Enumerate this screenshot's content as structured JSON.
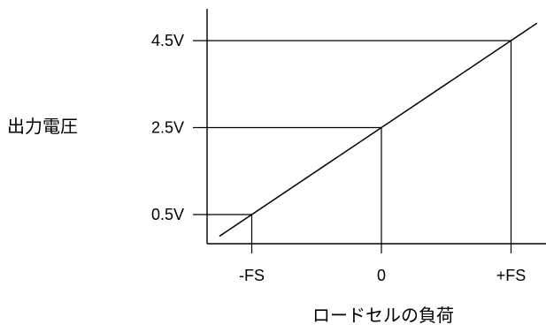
{
  "chart_data": {
    "type": "line",
    "title": "",
    "xlabel": "ロードセルの負荷",
    "ylabel": "出力電圧",
    "x_ticks": [
      "-FS",
      "0",
      "+FS"
    ],
    "x_tick_values": [
      -1,
      0,
      1
    ],
    "y_ticks": [
      "0.5V",
      "2.5V",
      "4.5V"
    ],
    "y_tick_values": [
      0.5,
      2.5,
      4.5
    ],
    "xlim": [
      -1.25,
      1.2
    ],
    "ylim": [
      -0.25,
      4.95
    ],
    "grid": false,
    "series": [
      {
        "x": [
          -1.25,
          1.2
        ],
        "y": [
          0.0,
          4.9
        ]
      }
    ],
    "guides": [
      {
        "x": -1,
        "y": 0.5
      },
      {
        "x": 0,
        "y": 2.5
      },
      {
        "x": 1,
        "y": 4.5
      }
    ]
  }
}
